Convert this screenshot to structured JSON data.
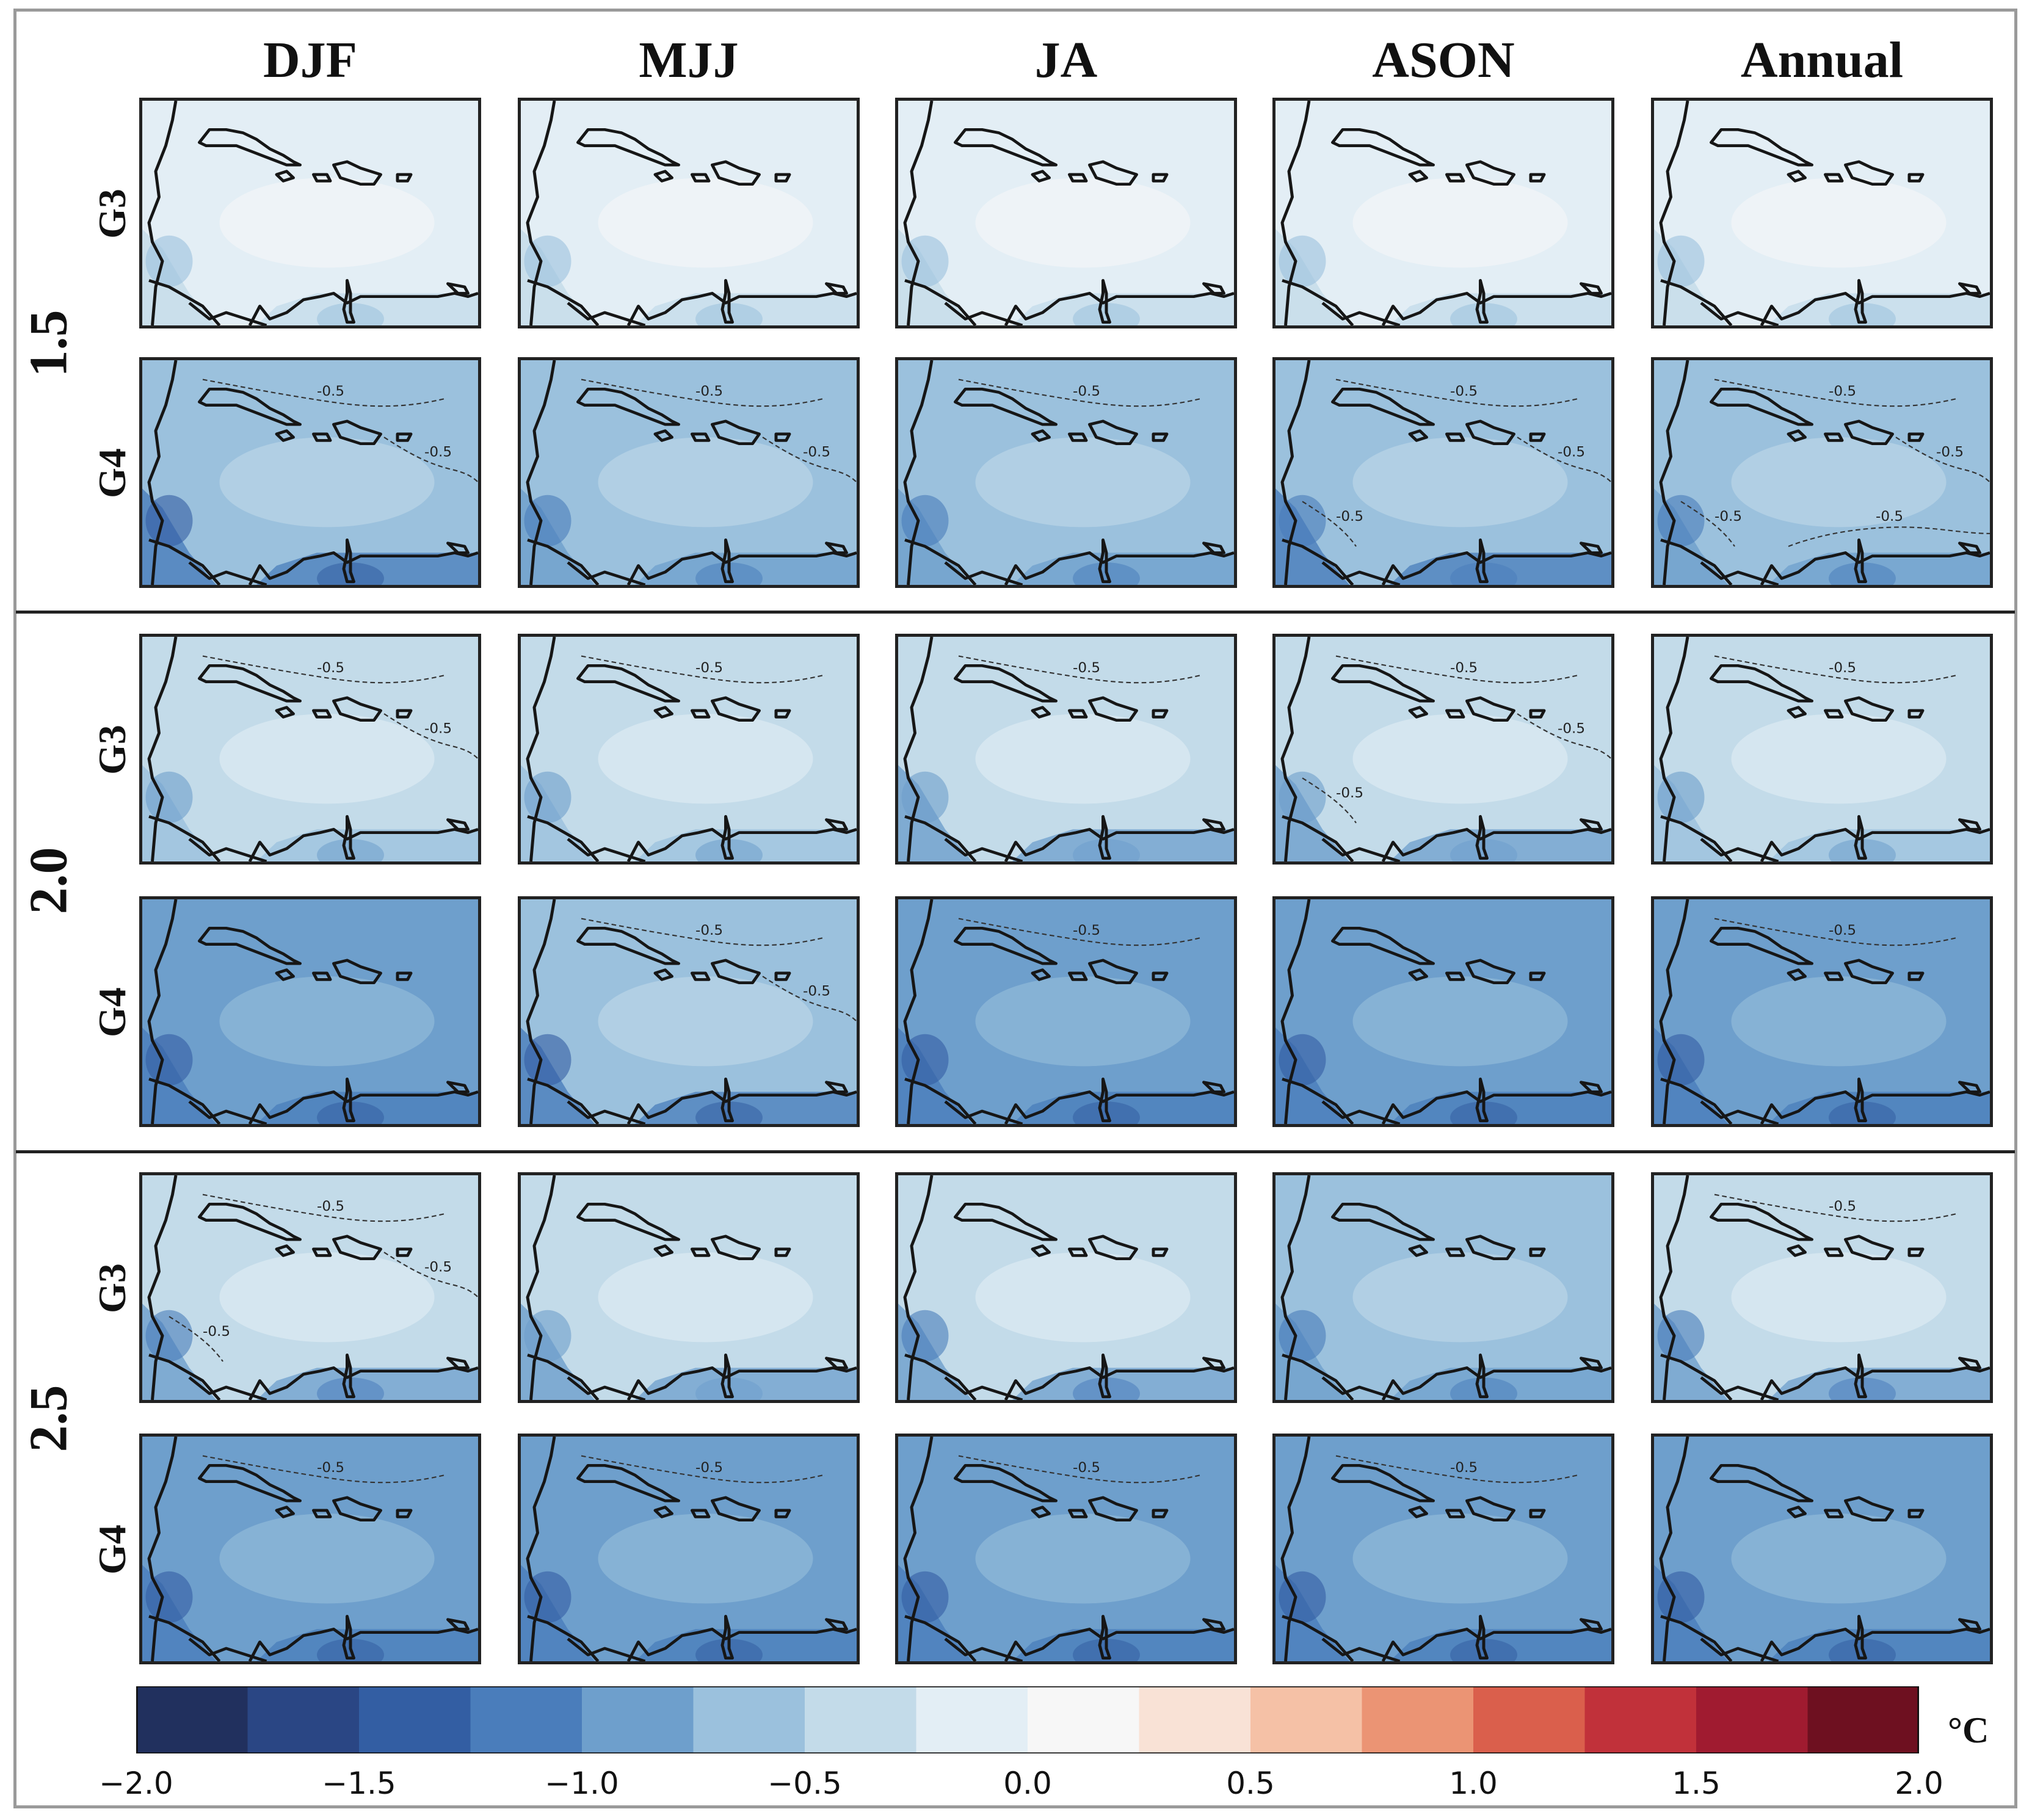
{
  "columns": [
    "DJF",
    "MJJ",
    "JA",
    "ASON",
    "Annual"
  ],
  "groups": [
    {
      "label": "1.5",
      "rows": [
        {
          "label": "G3",
          "levels": [
            -0.05,
            -0.1,
            -0.1,
            -0.12,
            -0.08
          ],
          "contours": [
            [],
            [],
            [],
            [],
            []
          ]
        },
        {
          "label": "G4",
          "levels": [
            -0.75,
            -0.6,
            -0.6,
            -0.7,
            -0.65
          ],
          "contours": [
            [
              "-0.5",
              "-0.5"
            ],
            [
              "-0.5",
              "-0.5"
            ],
            [
              "-0.5"
            ],
            [
              "-0.5",
              "-0.5",
              "-0.5"
            ],
            [
              "-0.5",
              "-0.5",
              "-0.5",
              "-0.5"
            ]
          ]
        }
      ]
    },
    {
      "label": "2.0",
      "rows": [
        {
          "label": "G3",
          "levels": [
            -0.35,
            -0.4,
            -0.45,
            -0.45,
            -0.4
          ],
          "contours": [
            [
              "-0.5",
              "-0.5"
            ],
            [
              "-0.5"
            ],
            [
              "-0.5"
            ],
            [
              "-0.5",
              "-0.5",
              "-0.5"
            ],
            [
              "-0.5"
            ]
          ]
        },
        {
          "label": "G4",
          "levels": [
            -0.8,
            -0.75,
            -0.8,
            -0.8,
            -0.8
          ],
          "contours": [
            [],
            [
              "-0.5",
              "-0.5"
            ],
            [
              "-0.5"
            ],
            [],
            [
              "-0.5"
            ]
          ]
        }
      ]
    },
    {
      "label": "2.5",
      "rows": [
        {
          "label": "G3",
          "levels": [
            -0.5,
            -0.45,
            -0.5,
            -0.55,
            -0.5
          ],
          "contours": [
            [
              "-0.5",
              "-0.5",
              "-0.5"
            ],
            [],
            [],
            [],
            [
              "-0.5"
            ]
          ]
        },
        {
          "label": "G4",
          "levels": [
            -0.85,
            -0.8,
            -0.85,
            -0.85,
            -0.85
          ],
          "contours": [
            [
              "-0.5"
            ],
            [
              "-0.5"
            ],
            [
              "-0.5"
            ],
            [
              "-0.5"
            ],
            []
          ]
        }
      ]
    }
  ],
  "colorbar": {
    "min": -2.0,
    "max": 2.0,
    "ticks": [
      "−2.0",
      "−1.5",
      "−1.0",
      "−0.5",
      "0.0",
      "0.5",
      "1.0",
      "1.5",
      "2.0"
    ],
    "unit": "°C",
    "colors": [
      "#21305e",
      "#2a4684",
      "#335ea3",
      "#4a7dbb",
      "#6e9fcc",
      "#9bc1dd",
      "#c3dbe9",
      "#e3eef5",
      "#f7f7f7",
      "#f9e2d6",
      "#f5c1a6",
      "#eb9474",
      "#da5f4c",
      "#c1313a",
      "#a01b30",
      "#6e1020"
    ]
  }
}
